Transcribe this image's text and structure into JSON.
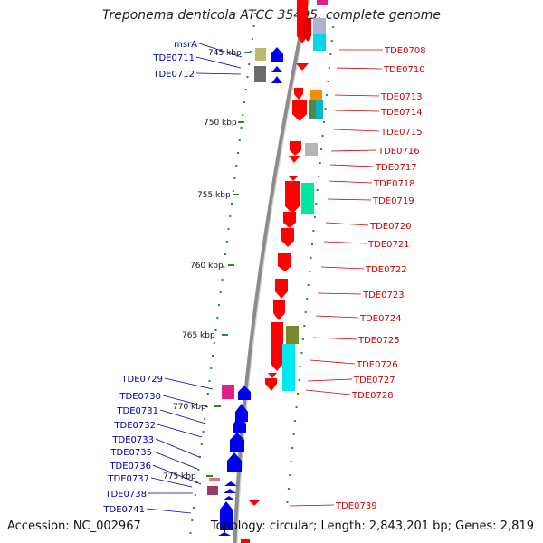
{
  "title": "Treponema denticola ATCC 35405, complete genome",
  "accession_text": "Accession: NC_002967",
  "topology_text": "Topology: circular; Length: 2,843,201 bp; Genes: 2,819",
  "kbp_labels": [
    "745 kbp",
    "750 kbp",
    "755 kbp",
    "760 kbp",
    "765 kbp",
    "770 kbp",
    "775 kbp"
  ],
  "left_labels": [
    "msrA",
    "TDE0711",
    "TDE0712",
    "TDE0729",
    "TDE0730",
    "TDE0731",
    "TDE0732",
    "TDE0733",
    "TDE0735",
    "TDE0736",
    "TDE0737",
    "TDE0738",
    "TDE0741"
  ],
  "right_labels": [
    "TDE0708",
    "TDE0710",
    "TDE0713",
    "TDE0714",
    "TDE0715",
    "TDE0716",
    "TDE0717",
    "TDE0718",
    "TDE0719",
    "TDE0720",
    "TDE0721",
    "TDE0722",
    "TDE0723",
    "TDE0724",
    "TDE0725",
    "TDE0726",
    "TDE0727",
    "TDE0728",
    "TDE0739"
  ],
  "colors": {
    "forward_gene": "#ff0000",
    "reverse_gene": "#0000ff",
    "backbone": "#888888",
    "tick": "#2a8a2a",
    "left_label": "#0000aa",
    "right_label": "#cc0000"
  }
}
